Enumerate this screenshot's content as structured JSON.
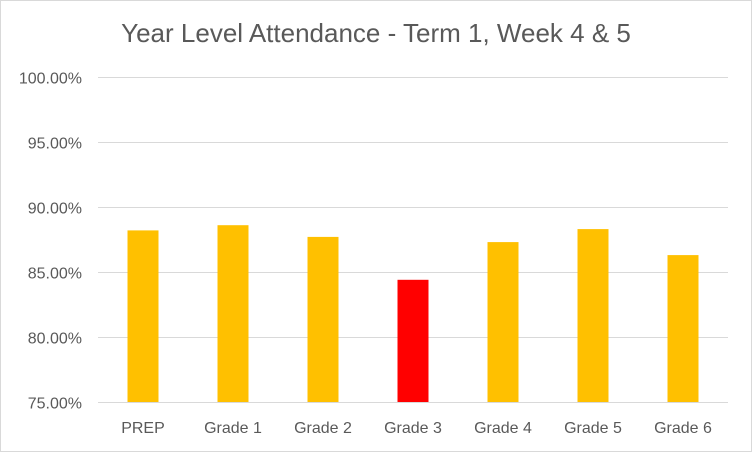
{
  "chart_data": {
    "type": "bar",
    "title": "Year Level Attendance - Term 1, Week 4 & 5",
    "xlabel": "",
    "ylabel": "",
    "categories": [
      "PREP",
      "Grade 1",
      "Grade 2",
      "Grade 3",
      "Grade 4",
      "Grade 5",
      "Grade 6"
    ],
    "values": [
      88.2,
      88.6,
      87.7,
      84.4,
      87.3,
      88.3,
      86.3
    ],
    "ylim": [
      75,
      100
    ],
    "yticks": [
      "75.00%",
      "80.00%",
      "85.00%",
      "90.00%",
      "95.00%",
      "100.00%"
    ],
    "ytick_values": [
      75,
      80,
      85,
      90,
      95,
      100
    ],
    "grid": true,
    "legend": "none",
    "colors": {
      "default_bar": "#FFC000",
      "highlight_bar": "#FF0000",
      "highlight_category": "Grade 3",
      "grid": "#D9D9D9",
      "text": "#595959"
    }
  }
}
